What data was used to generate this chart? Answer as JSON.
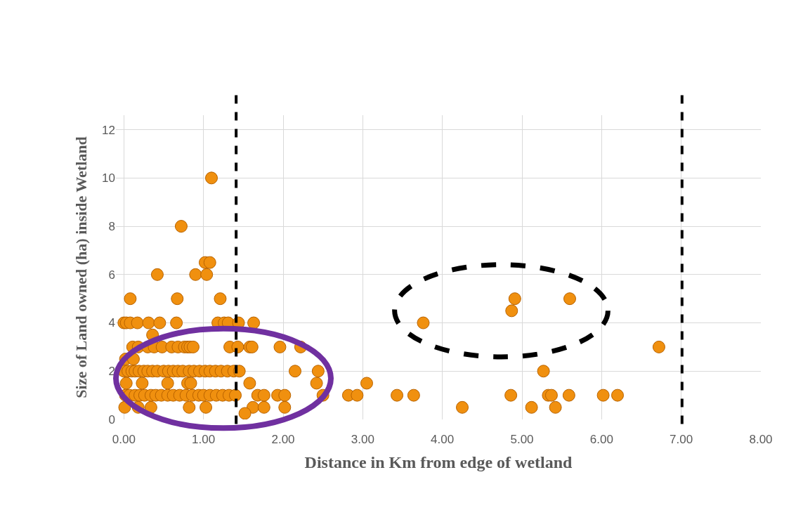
{
  "chart_data": {
    "type": "scatter",
    "xlabel": "Distance in Km from edge of wetland",
    "ylabel": "Size of Land owned (ha) inside Wetland",
    "series": [
      {
        "color": "#f0900f",
        "x": [
          1.1,
          0.72,
          1.02,
          1.08,
          0.42,
          0.9,
          1.04,
          0.08,
          0.67,
          1.21,
          4.91,
          5.6,
          4.87,
          0.0,
          0.03,
          0.08,
          0.17,
          0.31,
          0.45,
          0.66,
          1.18,
          1.26,
          1.31,
          1.44,
          1.63,
          3.76,
          0.36,
          0.11,
          0.18,
          0.3,
          0.38,
          0.48,
          0.6,
          0.68,
          0.76,
          0.8,
          0.83,
          0.87,
          1.33,
          1.43,
          1.58,
          1.61,
          1.96,
          2.22,
          6.72,
          0.02,
          0.12,
          0.0,
          0.05,
          0.1,
          0.14,
          0.19,
          0.25,
          0.3,
          0.36,
          0.42,
          0.5,
          0.56,
          0.62,
          0.68,
          0.74,
          0.82,
          0.88,
          0.95,
          1.02,
          1.08,
          1.15,
          1.22,
          1.3,
          1.38,
          1.45,
          2.15,
          2.44,
          5.27,
          0.03,
          0.23,
          0.55,
          0.8,
          0.84,
          1.58,
          2.42,
          3.05,
          0.02,
          0.07,
          0.14,
          0.2,
          0.26,
          0.34,
          0.4,
          0.47,
          0.55,
          0.62,
          0.7,
          0.78,
          0.86,
          0.94,
          1.0,
          1.08,
          1.16,
          1.24,
          1.32,
          1.4,
          1.68,
          1.76,
          1.93,
          2.02,
          2.5,
          2.82,
          2.93,
          3.43,
          3.64,
          4.86,
          5.33,
          5.37,
          5.59,
          6.02,
          6.2,
          0.01,
          0.18,
          0.34,
          0.82,
          1.03,
          1.62,
          1.76,
          2.02,
          4.25,
          5.12,
          5.42,
          1.52
        ],
        "values": [
          10,
          8,
          6.5,
          6.5,
          6,
          6,
          6,
          5,
          5,
          5,
          5,
          5,
          4.5,
          4,
          4,
          4,
          4,
          4,
          4,
          4,
          4,
          4,
          4,
          4,
          4,
          4,
          3.5,
          3,
          3,
          3,
          3,
          3,
          3,
          3,
          3,
          3,
          3,
          3,
          3,
          3,
          3,
          3,
          3,
          3,
          3,
          2.5,
          2.5,
          2,
          2,
          2,
          2,
          2,
          2,
          2,
          2,
          2,
          2,
          2,
          2,
          2,
          2,
          2,
          2,
          2,
          2,
          2,
          2,
          2,
          2,
          2,
          2,
          2,
          2,
          2,
          1.5,
          1.5,
          1.5,
          1.5,
          1.5,
          1.5,
          1.5,
          1.5,
          1,
          1,
          1,
          1,
          1,
          1,
          1,
          1,
          1,
          1,
          1,
          1,
          1,
          1,
          1,
          1,
          1,
          1,
          1,
          1,
          1,
          1,
          1,
          1,
          1,
          1,
          1,
          1,
          1,
          1,
          1,
          1,
          1,
          1,
          1,
          0.5,
          0.5,
          0.5,
          0.5,
          0.5,
          0.5,
          0.5,
          0.5,
          0.5,
          0.5,
          0.5,
          0.25
        ]
      }
    ],
    "xlim": [
      -0.1,
      8
    ],
    "xticks": [
      {
        "value": 0,
        "label": "0.00"
      },
      {
        "value": 1,
        "label": "1.00"
      },
      {
        "value": 2,
        "label": "2.00"
      },
      {
        "value": 3,
        "label": "3.00"
      },
      {
        "value": 4,
        "label": "4.00"
      },
      {
        "value": 5,
        "label": "5.00"
      },
      {
        "value": 6,
        "label": "6.00"
      },
      {
        "value": 7,
        "label": "7.00"
      },
      {
        "value": 8,
        "label": "8.00"
      }
    ],
    "ylim": [
      0,
      12.6
    ],
    "yticks": [
      0,
      2,
      4,
      6,
      8,
      10,
      12
    ],
    "ref_lines": [
      {
        "axis": "x",
        "value": 1.41,
        "color": "#000000",
        "line_style": "dashed"
      },
      {
        "axis": "x",
        "value": 7.01,
        "color": "#000000",
        "line_style": "dashed"
      }
    ],
    "grid": true,
    "marker": "circle"
  }
}
